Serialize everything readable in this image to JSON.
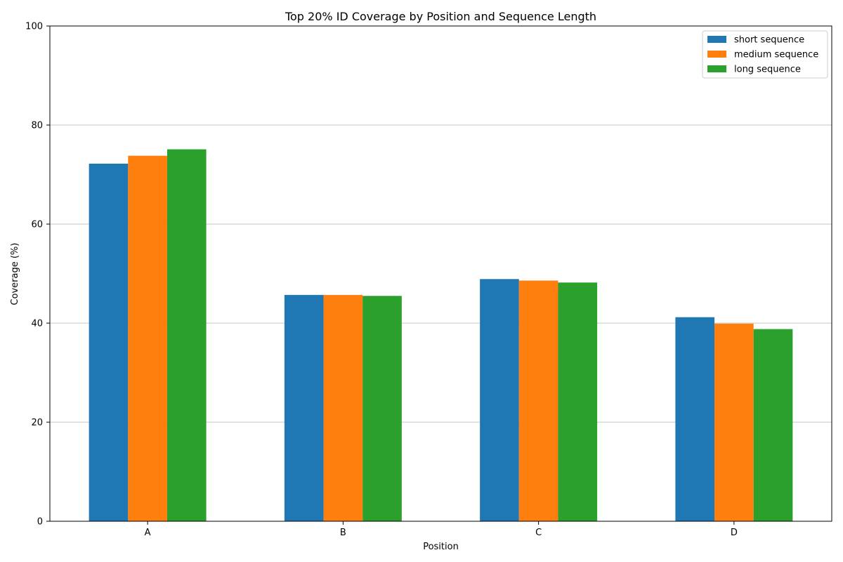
{
  "chart_data": {
    "type": "bar",
    "title": "Top 20% ID Coverage by Position and Sequence Length",
    "xlabel": "Position",
    "ylabel": "Coverage (%)",
    "categories": [
      "A",
      "B",
      "C",
      "D"
    ],
    "ylim": [
      0,
      100
    ],
    "yticks": [
      0,
      20,
      40,
      60,
      80,
      100
    ],
    "grid": "y",
    "legend_position": "top-right",
    "series": [
      {
        "name": "short sequence",
        "color": "#1f77b4",
        "values": [
          72.2,
          45.7,
          48.9,
          41.2
        ]
      },
      {
        "name": "medium sequence",
        "color": "#ff7f0e",
        "values": [
          73.8,
          45.7,
          48.6,
          39.9
        ]
      },
      {
        "name": "long sequence",
        "color": "#2ca02c",
        "values": [
          75.1,
          45.5,
          48.2,
          38.8
        ]
      }
    ]
  }
}
